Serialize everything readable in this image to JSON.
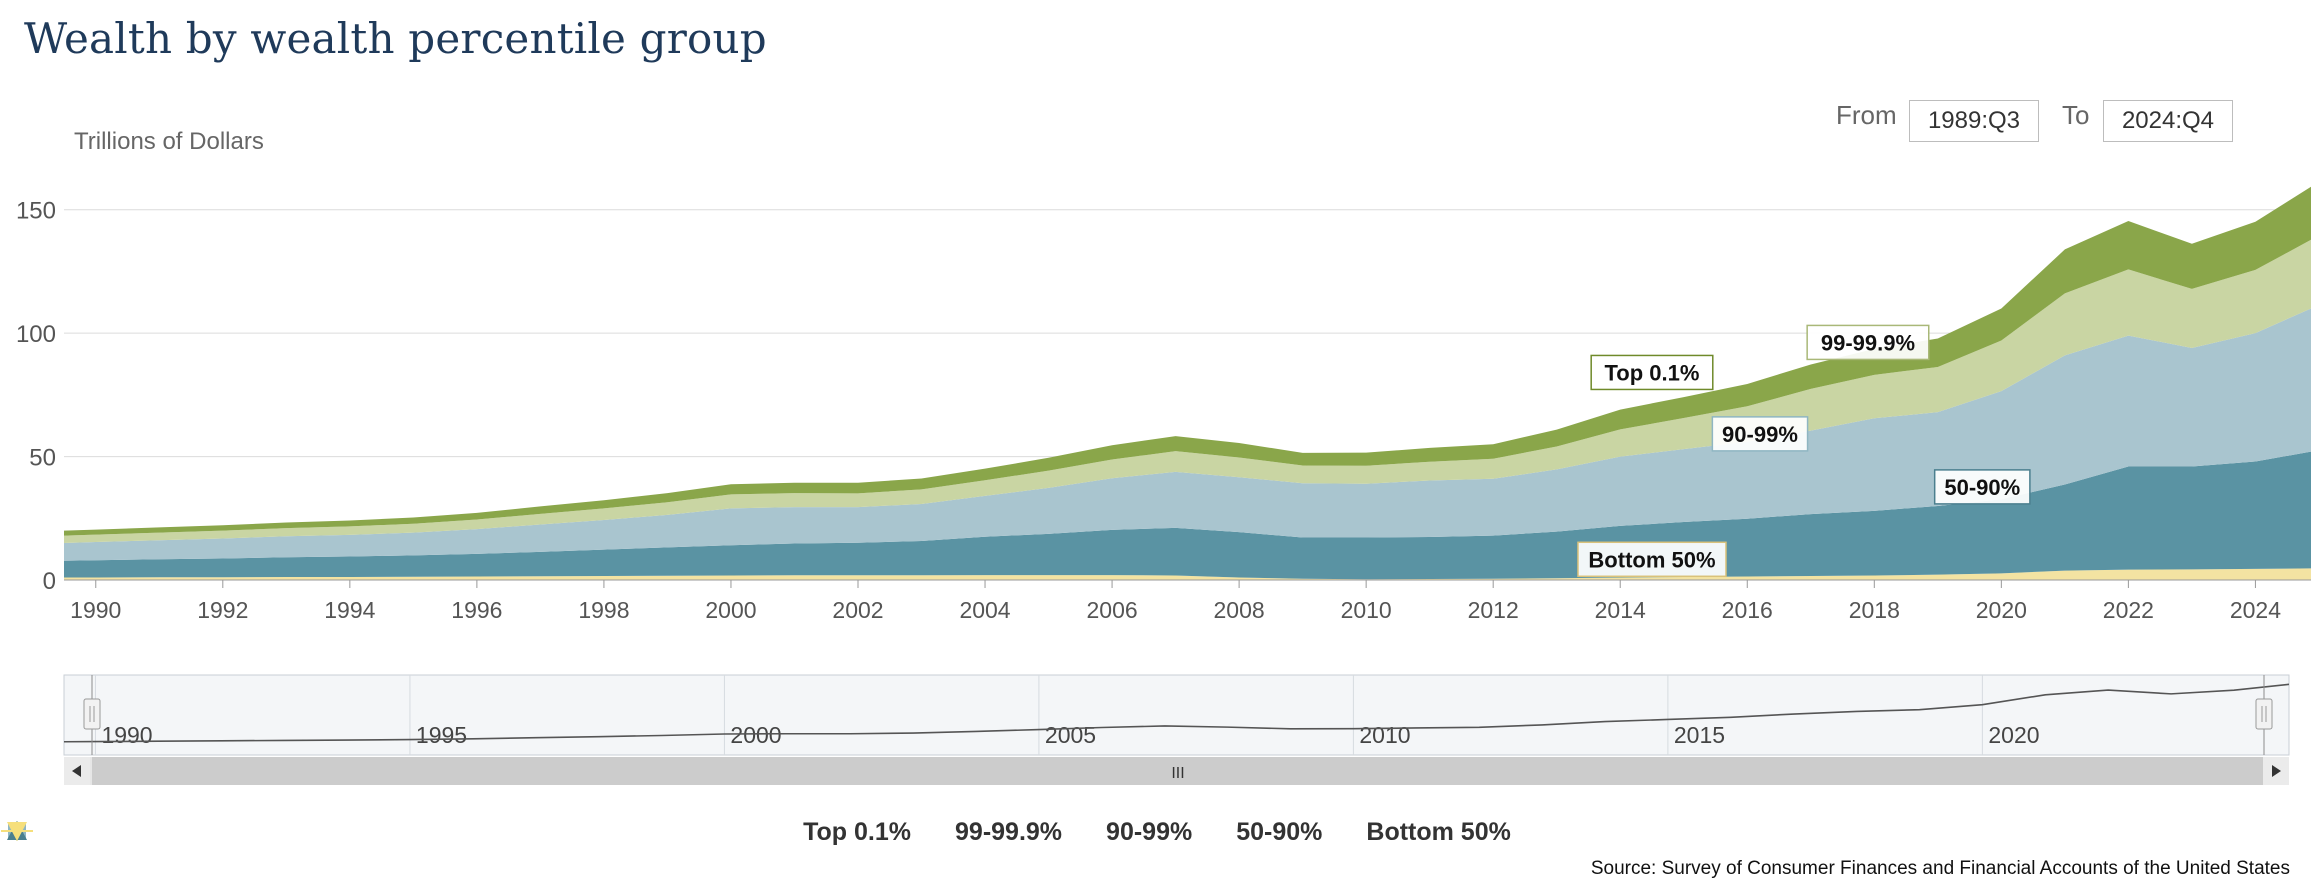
{
  "title": "Wealth by wealth percentile group",
  "range": {
    "from_label": "From",
    "from_value": "1989:Q3",
    "to_label": "To",
    "to_value": "2024:Q4"
  },
  "source": "Source: Survey of Consumer Finances and Financial Accounts of the United States",
  "colors": {
    "top01": "#8aa64a",
    "p99": "#c9d5a3",
    "p90": "#a9c5cf",
    "p50": "#5a93a3",
    "bottom50": "#f3e3a2"
  },
  "navigator": {
    "labels": [
      "1990",
      "1995",
      "2000",
      "2005",
      "2010",
      "2015",
      "2020"
    ],
    "scroll_grip": "III"
  },
  "chart_data": {
    "type": "area",
    "stacked": true,
    "ylabel": "Trillions of Dollars",
    "ylim": [
      0,
      160
    ],
    "yticks": [
      0,
      50,
      100,
      150
    ],
    "xlim": [
      1989.5,
      2024.875
    ],
    "xticks": [
      "1990",
      "1992",
      "1994",
      "1996",
      "1998",
      "2000",
      "2002",
      "2004",
      "2006",
      "2008",
      "2010",
      "2012",
      "2014",
      "2016",
      "2018",
      "2020",
      "2022",
      "2024"
    ],
    "grid": "horizontal",
    "legend_position": "bottom",
    "x": [
      1989.5,
      1990,
      1991,
      1992,
      1993,
      1994,
      1995,
      1996,
      1997,
      1998,
      1999,
      2000,
      2001,
      2002,
      2003,
      2004,
      2005,
      2006,
      2007,
      2008,
      2009,
      2010,
      2011,
      2012,
      2013,
      2014,
      2015,
      2016,
      2017,
      2018,
      2019,
      2020,
      2021,
      2022,
      2023,
      2024,
      2024.875
    ],
    "series": [
      {
        "name": "Bottom 50%",
        "values": [
          1.0,
          1.0,
          1.1,
          1.1,
          1.2,
          1.2,
          1.3,
          1.4,
          1.5,
          1.6,
          1.7,
          1.8,
          1.9,
          1.9,
          1.9,
          2.0,
          2.0,
          2.0,
          1.8,
          1.0,
          0.5,
          0.3,
          0.4,
          0.5,
          0.7,
          1.0,
          1.2,
          1.4,
          1.6,
          1.8,
          2.2,
          2.7,
          3.8,
          4.2,
          4.3,
          4.5,
          4.7
        ]
      },
      {
        "name": "50-90%",
        "values": [
          6.8,
          7.0,
          7.3,
          7.6,
          8.0,
          8.3,
          8.7,
          9.2,
          9.9,
          10.7,
          11.5,
          12.3,
          12.9,
          13.2,
          13.9,
          15.5,
          16.7,
          18.3,
          19.3,
          18.4,
          16.7,
          16.9,
          17.0,
          17.5,
          18.9,
          20.9,
          22.3,
          23.4,
          25.1,
          26.2,
          27.8,
          30.0,
          34.9,
          41.8,
          41.7,
          43.5,
          47.3
        ]
      },
      {
        "name": "90-99%",
        "values": [
          7.2,
          7.4,
          7.7,
          8.1,
          8.5,
          8.8,
          9.2,
          10.0,
          11.1,
          12.0,
          13.2,
          14.9,
          14.7,
          14.4,
          15.0,
          16.6,
          18.6,
          20.9,
          22.7,
          22.2,
          22.0,
          21.8,
          22.9,
          23.0,
          25.2,
          28.1,
          29.5,
          31.2,
          33.8,
          37.5,
          38.0,
          43.8,
          52.3,
          53.0,
          48.0,
          52.0,
          58.0
        ]
      },
      {
        "name": "99-99.9%",
        "values": [
          3.0,
          3.0,
          3.1,
          3.2,
          3.3,
          3.4,
          3.6,
          3.9,
          4.3,
          4.7,
          5.1,
          5.7,
          5.7,
          5.6,
          5.9,
          6.3,
          7.0,
          7.6,
          8.4,
          8.0,
          7.2,
          7.3,
          7.6,
          8.1,
          9.3,
          11.0,
          12.6,
          14.4,
          16.9,
          17.6,
          18.3,
          20.5,
          25.1,
          26.8,
          23.9,
          25.6,
          27.8
        ]
      },
      {
        "name": "Top 0.1%",
        "values": [
          2.0,
          2.0,
          2.1,
          2.2,
          2.3,
          2.4,
          2.5,
          2.7,
          3.0,
          3.3,
          3.7,
          4.1,
          4.2,
          4.3,
          4.4,
          4.7,
          5.2,
          5.8,
          6.1,
          5.9,
          5.1,
          5.3,
          5.6,
          5.9,
          6.8,
          8.0,
          8.5,
          9.0,
          9.9,
          10.5,
          11.5,
          13.0,
          17.8,
          19.6,
          18.3,
          19.5,
          21.5
        ]
      }
    ],
    "annotations": [
      {
        "text": "Top 0.1%",
        "series": "Top 0.1%"
      },
      {
        "text": "99-99.9%",
        "series": "99-99.9%"
      },
      {
        "text": "90-99%",
        "series": "90-99%"
      },
      {
        "text": "50-90%",
        "series": "50-90%"
      },
      {
        "text": "Bottom 50%",
        "series": "Bottom 50%"
      }
    ]
  },
  "legend": [
    {
      "label": "Top 0.1%",
      "symbol": "circle"
    },
    {
      "label": "99-99.9%",
      "symbol": "diamond"
    },
    {
      "label": "90-99%",
      "symbol": "square"
    },
    {
      "label": "50-90%",
      "symbol": "triangle"
    },
    {
      "label": "Bottom 50%",
      "symbol": "triangle-down"
    }
  ]
}
